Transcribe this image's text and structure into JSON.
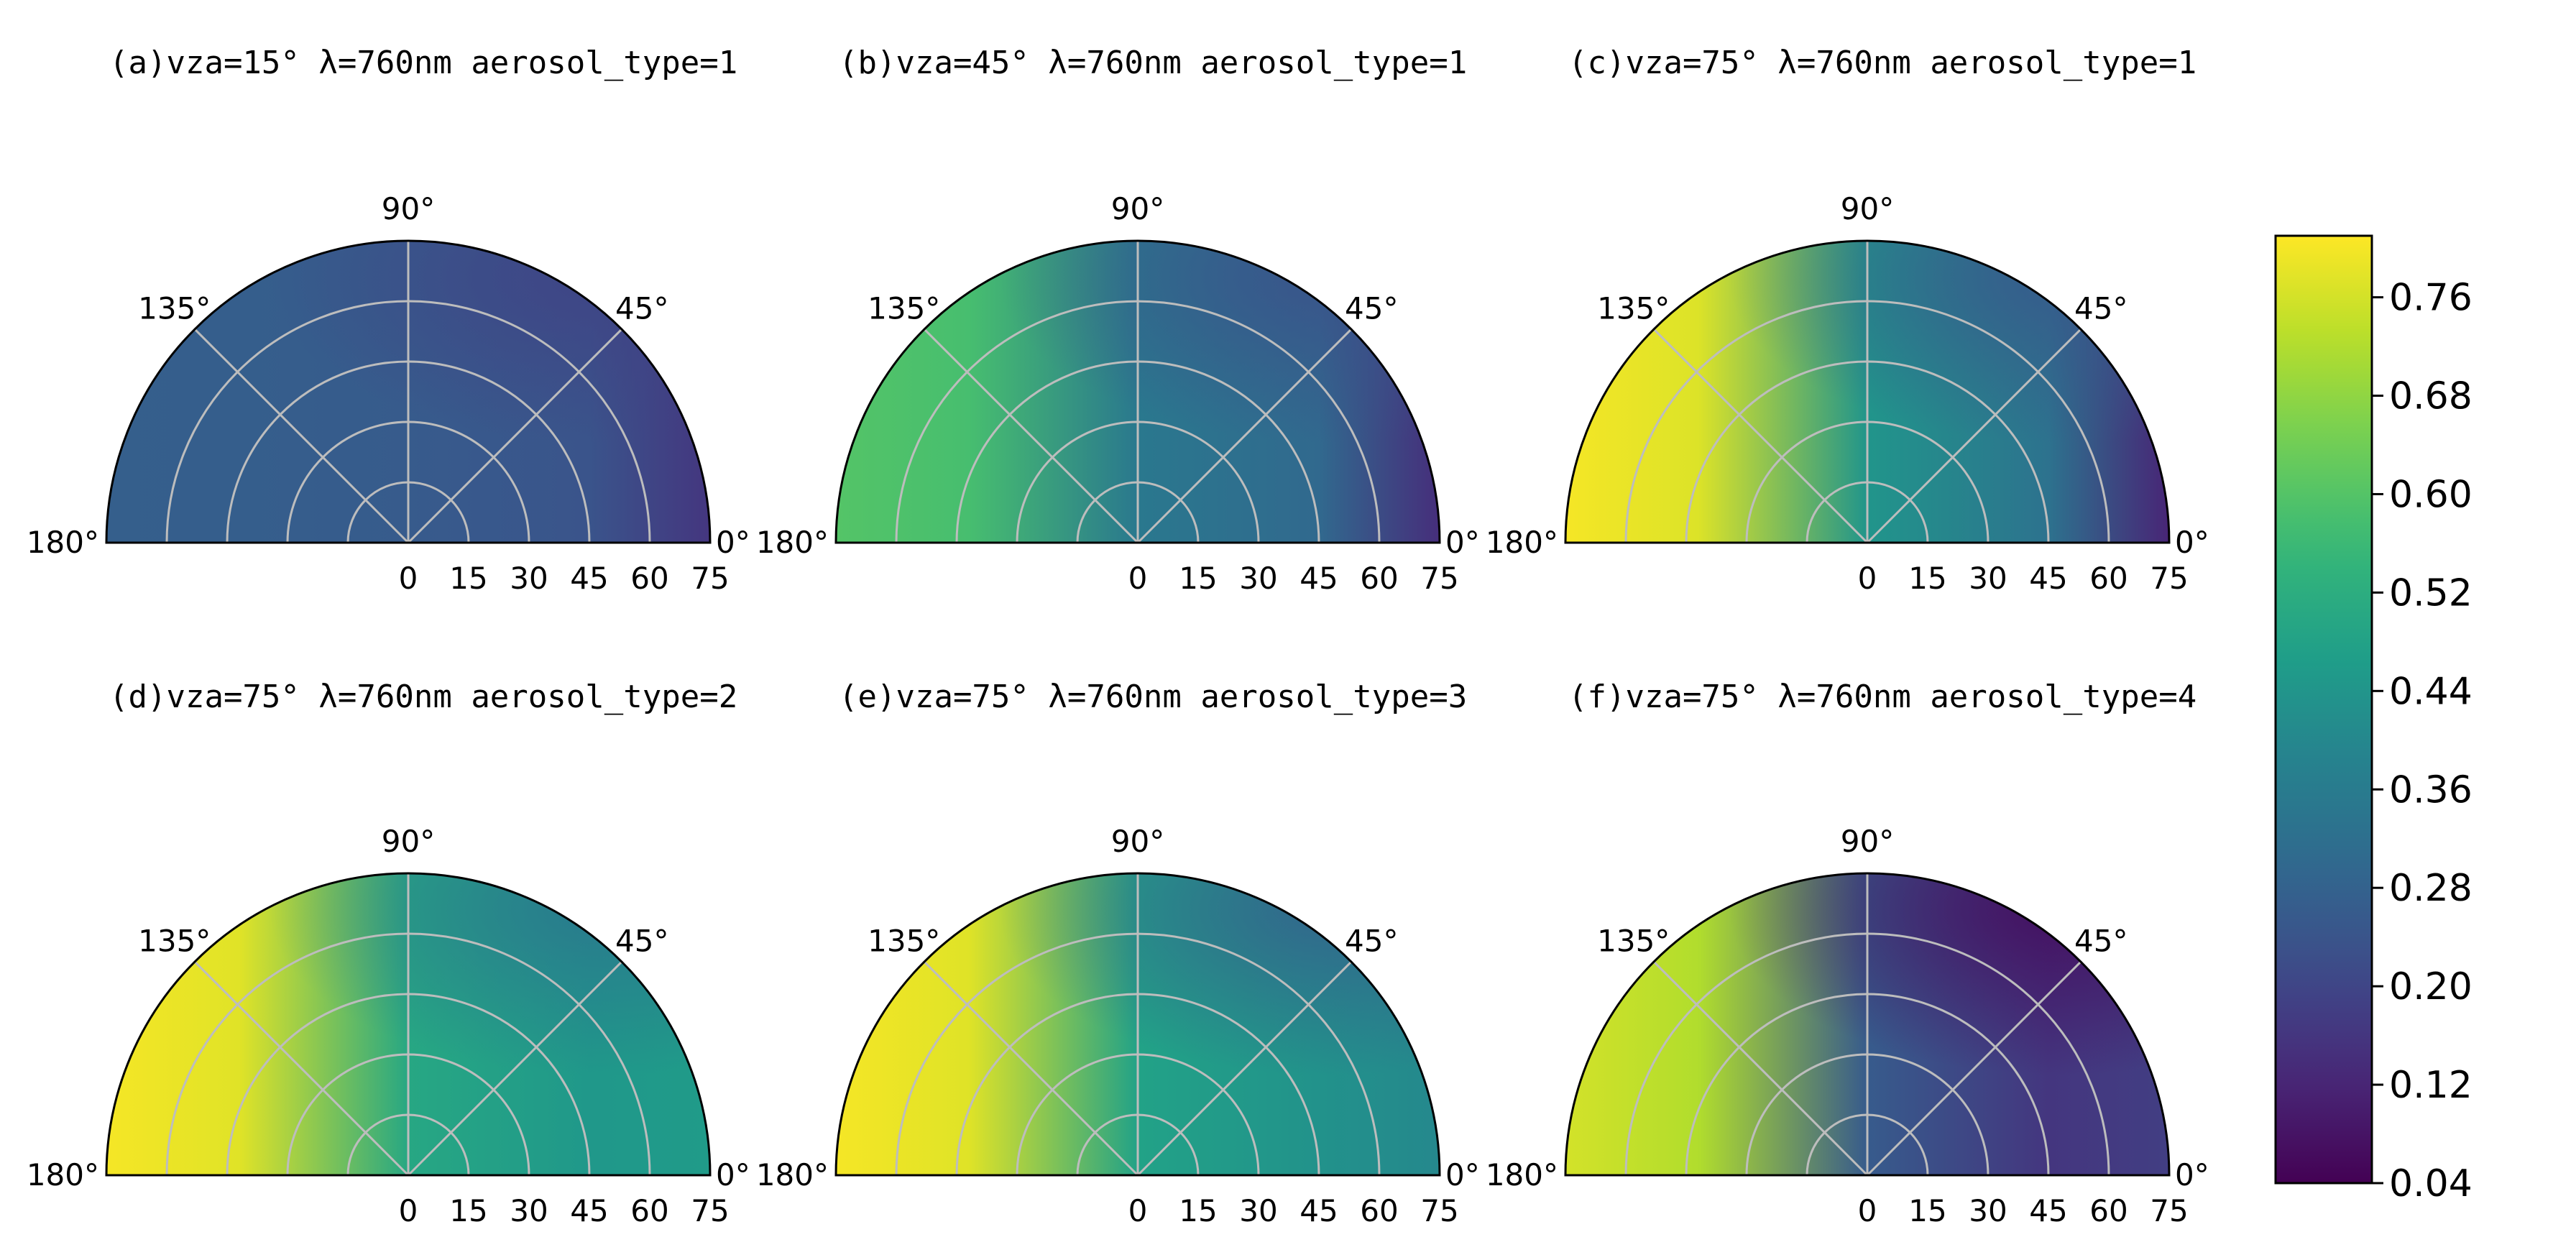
{
  "colorbar": {
    "ticks": [
      "0.76",
      "0.68",
      "0.60",
      "0.52",
      "0.44",
      "0.36",
      "0.28",
      "0.20",
      "0.12",
      "0.04"
    ],
    "tick_values": [
      0.76,
      0.68,
      0.6,
      0.52,
      0.44,
      0.36,
      0.28,
      0.2,
      0.12,
      0.04
    ],
    "range": [
      0.04,
      0.81
    ],
    "colormap": "viridis"
  },
  "chart_data": [
    {
      "type": "heatmap",
      "projection": "polar-half",
      "title": "(a)vza=15°  λ=760nm aerosol_type=1",
      "angle_ticks": [
        "180°",
        "135°",
        "90°",
        "45°",
        "0°"
      ],
      "radial_ticks": [
        "0",
        "15",
        "30",
        "45",
        "60",
        "75"
      ],
      "rlim": [
        0,
        75
      ],
      "theta_range_deg": [
        0,
        180
      ],
      "grid": true,
      "value_profile": {
        "left": 0.27,
        "center": 0.26,
        "right_mid": 0.24,
        "right_edge": 0.16,
        "upper_right": 0.19
      }
    },
    {
      "type": "heatmap",
      "projection": "polar-half",
      "title": "(b)vza=45°  λ=760nm aerosol_type=1",
      "angle_ticks": [
        "180°",
        "135°",
        "90°",
        "45°",
        "0°"
      ],
      "radial_ticks": [
        "0",
        "15",
        "30",
        "45",
        "60",
        "75"
      ],
      "rlim": [
        0,
        75
      ],
      "theta_range_deg": [
        0,
        180
      ],
      "grid": true,
      "value_profile": {
        "left": 0.6,
        "center": 0.35,
        "right_mid": 0.3,
        "right_edge": 0.14,
        "upper_right": 0.23
      }
    },
    {
      "type": "heatmap",
      "projection": "polar-half",
      "title": "(c)vza=75°  λ=760nm aerosol_type=1",
      "angle_ticks": [
        "180°",
        "135°",
        "90°",
        "45°",
        "0°"
      ],
      "radial_ticks": [
        "0",
        "15",
        "30",
        "45",
        "60",
        "75"
      ],
      "rlim": [
        0,
        75
      ],
      "theta_range_deg": [
        0,
        180
      ],
      "grid": true,
      "value_profile": {
        "left": 0.8,
        "center": 0.44,
        "right_mid": 0.33,
        "right_edge": 0.12,
        "upper_right": 0.25
      }
    },
    {
      "type": "heatmap",
      "projection": "polar-half",
      "title": "(d)vza=75°  λ=760nm aerosol_type=2",
      "angle_ticks": [
        "180°",
        "135°",
        "90°",
        "45°",
        "0°"
      ],
      "radial_ticks": [
        "0",
        "15",
        "30",
        "45",
        "60",
        "75"
      ],
      "rlim": [
        0,
        75
      ],
      "theta_range_deg": [
        0,
        180
      ],
      "grid": true,
      "value_profile": {
        "left": 0.8,
        "center": 0.5,
        "right_mid": 0.45,
        "right_edge": 0.46,
        "upper_right": 0.34
      }
    },
    {
      "type": "heatmap",
      "projection": "polar-half",
      "title": "(e)vza=75°  λ=760nm aerosol_type=3",
      "angle_ticks": [
        "180°",
        "135°",
        "90°",
        "45°",
        "0°"
      ],
      "radial_ticks": [
        "0",
        "15",
        "30",
        "45",
        "60",
        "75"
      ],
      "rlim": [
        0,
        75
      ],
      "theta_range_deg": [
        0,
        180
      ],
      "grid": true,
      "value_profile": {
        "left": 0.8,
        "center": 0.48,
        "right_mid": 0.43,
        "right_edge": 0.4,
        "upper_right": 0.27
      }
    },
    {
      "type": "heatmap",
      "projection": "polar-half",
      "title": "(f)vza=75°  λ=760nm aerosol_type=4",
      "angle_ticks": [
        "180°",
        "135°",
        "90°",
        "45°",
        "0°"
      ],
      "radial_ticks": [
        "0",
        "15",
        "30",
        "45",
        "60",
        "75"
      ],
      "rlim": [
        0,
        75
      ],
      "theta_range_deg": [
        0,
        180
      ],
      "grid": true,
      "value_profile": {
        "left": 0.76,
        "center": 0.26,
        "right_mid": 0.16,
        "right_edge": 0.18,
        "upper_right": 0.06
      }
    }
  ]
}
